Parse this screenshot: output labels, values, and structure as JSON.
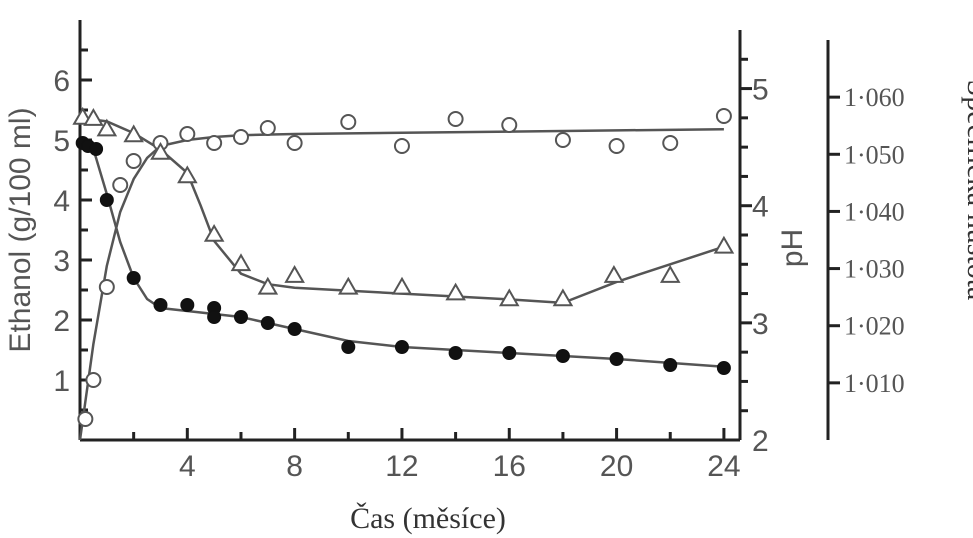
{
  "chart_data": {
    "type": "line",
    "title": "",
    "xlabel": "Čas (měsíce)",
    "x_ticks": [
      "4",
      "8",
      "12",
      "16",
      "20",
      "24"
    ],
    "x_tick_values": [
      4,
      8,
      12,
      16,
      20,
      24
    ],
    "xlim": [
      0,
      24.6
    ],
    "axes": {
      "ethanol": {
        "label": "Ethanol (g/100 ml)",
        "position": "left",
        "ylim": [
          0,
          7
        ],
        "ticks": [
          "1",
          "2",
          "3",
          "4",
          "5",
          "6"
        ],
        "tick_values": [
          1,
          2,
          3,
          4,
          5,
          6
        ]
      },
      "ph": {
        "label": "pH",
        "position": "right-inner",
        "ylim": [
          2,
          5.5
        ],
        "ticks": [
          "2",
          "3",
          "4",
          "5"
        ],
        "tick_values": [
          2,
          3,
          4,
          5
        ]
      },
      "specific_gravity": {
        "label": "Specifická hustota",
        "position": "right-outer",
        "ylim": [
          1.0,
          1.07
        ],
        "ticks": [
          "1·010",
          "1·020",
          "1·030",
          "1·040",
          "1·050",
          "1·060"
        ],
        "tick_values": [
          1.01,
          1.02,
          1.03,
          1.04,
          1.05,
          1.06
        ]
      }
    },
    "series": [
      {
        "axis": "ethanol",
        "marker": "open-circle",
        "x": [
          0.2,
          0.5,
          1.0,
          1.5,
          2.0,
          3.0,
          4.0,
          5.0,
          6.0,
          7.0,
          8.0,
          10.0,
          12.0,
          14.0,
          16.0,
          18.0,
          20.0,
          22.0,
          24.0
        ],
        "y": [
          0.35,
          1.0,
          2.55,
          4.25,
          4.65,
          4.95,
          5.1,
          4.95,
          5.05,
          5.2,
          4.95,
          5.3,
          4.9,
          5.35,
          5.25,
          5.0,
          4.9,
          4.95,
          5.4
        ],
        "fit_x": [
          0.0,
          0.5,
          1.0,
          1.5,
          2.0,
          2.5,
          3.0,
          4.0,
          5.0,
          6.0,
          8.0,
          12.0,
          16.0,
          20.0,
          24.0
        ],
        "fit_y": [
          0.0,
          1.6,
          2.9,
          3.8,
          4.35,
          4.7,
          4.9,
          5.0,
          5.05,
          5.08,
          5.1,
          5.12,
          5.14,
          5.16,
          5.18
        ]
      },
      {
        "axis": "ph",
        "marker": "open-triangle",
        "x": [
          0.1,
          0.5,
          1.0,
          2.0,
          3.0,
          4.0,
          5.0,
          6.0,
          7.0,
          8.0,
          10.0,
          12.0,
          14.0,
          16.0,
          18.0,
          19.9,
          22.0,
          24.0
        ],
        "y": [
          4.75,
          4.74,
          4.65,
          4.6,
          4.45,
          4.25,
          3.75,
          3.5,
          3.3,
          3.4,
          3.3,
          3.3,
          3.25,
          3.2,
          3.2,
          3.4,
          3.4,
          3.65
        ],
        "fit_x": [
          0.0,
          1.0,
          2.0,
          3.0,
          4.0,
          4.5,
          5.0,
          6.0,
          7.0,
          8.0,
          12.0,
          16.0,
          18.0,
          20.0,
          24.0
        ],
        "fit_y": [
          4.75,
          4.72,
          4.62,
          4.48,
          4.28,
          4.0,
          3.7,
          3.42,
          3.33,
          3.3,
          3.25,
          3.2,
          3.17,
          3.35,
          3.65
        ]
      },
      {
        "axis": "ethanol",
        "marker": "filled-circle",
        "x": [
          0.1,
          0.3,
          0.6,
          1.0,
          2.0,
          3.0,
          4.0,
          5.0,
          5.0,
          6.0,
          7.0,
          8.0,
          10.0,
          12.0,
          14.0,
          16.0,
          18.0,
          20.0,
          22.0,
          24.0
        ],
        "y": [
          4.95,
          4.9,
          4.85,
          4.0,
          2.7,
          2.25,
          2.25,
          2.2,
          2.05,
          2.05,
          1.95,
          1.85,
          1.55,
          1.55,
          1.45,
          1.45,
          1.4,
          1.35,
          1.25,
          1.2
        ],
        "fit_x": [
          0.0,
          0.5,
          1.0,
          1.5,
          2.0,
          2.5,
          3.0,
          4.0,
          6.0,
          8.0,
          10.0,
          12.0,
          16.0,
          20.0,
          24.0
        ],
        "fit_y": [
          5.0,
          4.85,
          4.1,
          3.3,
          2.7,
          2.35,
          2.2,
          2.15,
          2.05,
          1.85,
          1.65,
          1.55,
          1.45,
          1.35,
          1.22
        ]
      }
    ]
  }
}
